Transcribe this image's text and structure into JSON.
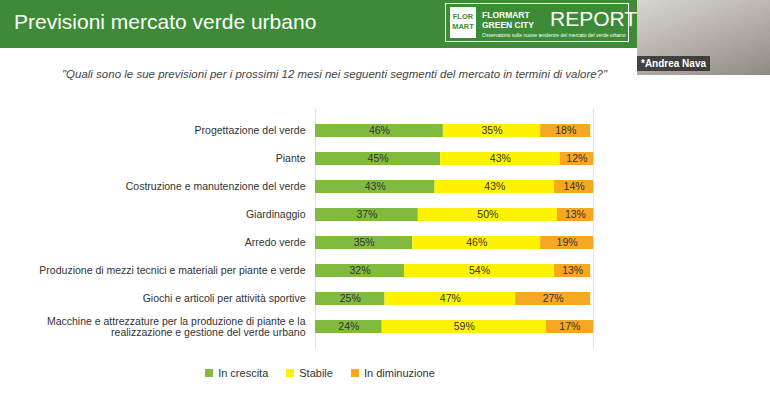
{
  "header": {
    "logo": {
      "mark": [
        "FLOR",
        "MART"
      ],
      "name": [
        "FLORMART",
        "GREEN CITY"
      ],
      "report": "REPORT",
      "tagline": "Osservatorio sulle nuove tendenze del mercato del verde urbano"
    },
    "speaker": "*Andrea Nava"
  },
  "chart_data": {
    "type": "bar",
    "title": "Previsioni mercato verde urbano",
    "subtitle": "\"Quali sono le sue previsioni per i prossimi 12 mesi nei seguenti segmenti del mercato in termini di valore?\"",
    "orientation": "horizontal",
    "stacked": true,
    "data_labels": true,
    "tick_labels": "y",
    "legend": "bottom",
    "xlim": [
      0,
      100
    ],
    "xticks": [],
    "categories": [
      "Progettazione del verde",
      "Piante",
      "Costruzione e manutenzione del verde",
      "Giardinaggio",
      "Arredo verde",
      "Produzione di mezzi tecnici e materiali per piante e verde",
      "Giochi e articoli per attività sportive",
      "Macchine e attrezzature per la produzione di piante e la realizzazione e gestione del verde urbano"
    ],
    "series": [
      {
        "name": "In crescita",
        "color": "#80bb3f",
        "values": [
          46,
          45,
          43,
          37,
          35,
          32,
          25,
          24
        ],
        "value_labels": [
          "46%",
          "45%",
          "43%",
          "37%",
          "35%",
          "32%",
          "25%",
          "24%"
        ]
      },
      {
        "name": "Stabile",
        "color": "#fff200",
        "values": [
          35,
          43,
          43,
          50,
          46,
          54,
          47,
          59
        ],
        "value_labels": [
          "35%",
          "43%",
          "43%",
          "50%",
          "46%",
          "54%",
          "47%",
          "59%"
        ]
      },
      {
        "name": "In diminuzione",
        "color": "#f7a823",
        "values": [
          18,
          12,
          14,
          13,
          19,
          13,
          27,
          17
        ],
        "value_labels": [
          "18%",
          "12%",
          "14%",
          "13%",
          "19%",
          "13%",
          "27%",
          "17%"
        ]
      }
    ]
  }
}
